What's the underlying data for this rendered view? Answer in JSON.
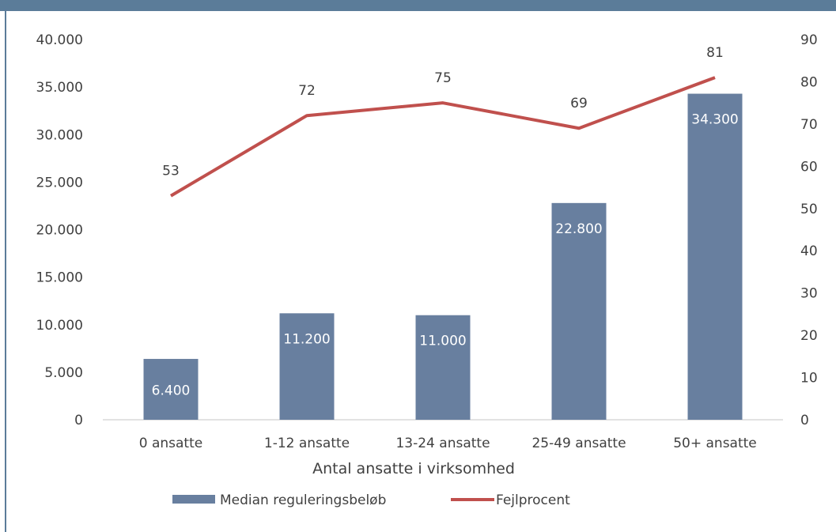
{
  "chart_data": {
    "type": "bar",
    "categories": [
      "0 ansatte",
      "1-12 ansatte",
      "13-24 ansatte",
      "25-49 ansatte",
      "50+ ansatte"
    ],
    "series": [
      {
        "name": "Median reguleringsbeløb",
        "type": "bar",
        "axis": "left",
        "color": "#687f9f",
        "values": [
          6400,
          11200,
          11000,
          22800,
          34300
        ],
        "labels": [
          "6.400",
          "11.200",
          "11.000",
          "22.800",
          "34.300"
        ]
      },
      {
        "name": "Fejlprocent",
        "type": "line",
        "axis": "right",
        "color": "#c0504d",
        "values": [
          53,
          72,
          75,
          69,
          81
        ],
        "labels": [
          "53",
          "72",
          "75",
          "69",
          "81"
        ]
      }
    ],
    "xlabel": "Antal ansatte i virksomhed",
    "ylim": [
      0,
      40000
    ],
    "y2lim": [
      0,
      90
    ],
    "yticks": [
      "0",
      "5.000",
      "10.000",
      "15.000",
      "20.000",
      "25.000",
      "30.000",
      "35.000",
      "40.000"
    ],
    "y2ticks": [
      "0",
      "10",
      "20",
      "30",
      "40",
      "50",
      "60",
      "70",
      "80",
      "90"
    ],
    "grid": false,
    "legend_position": "bottom"
  }
}
